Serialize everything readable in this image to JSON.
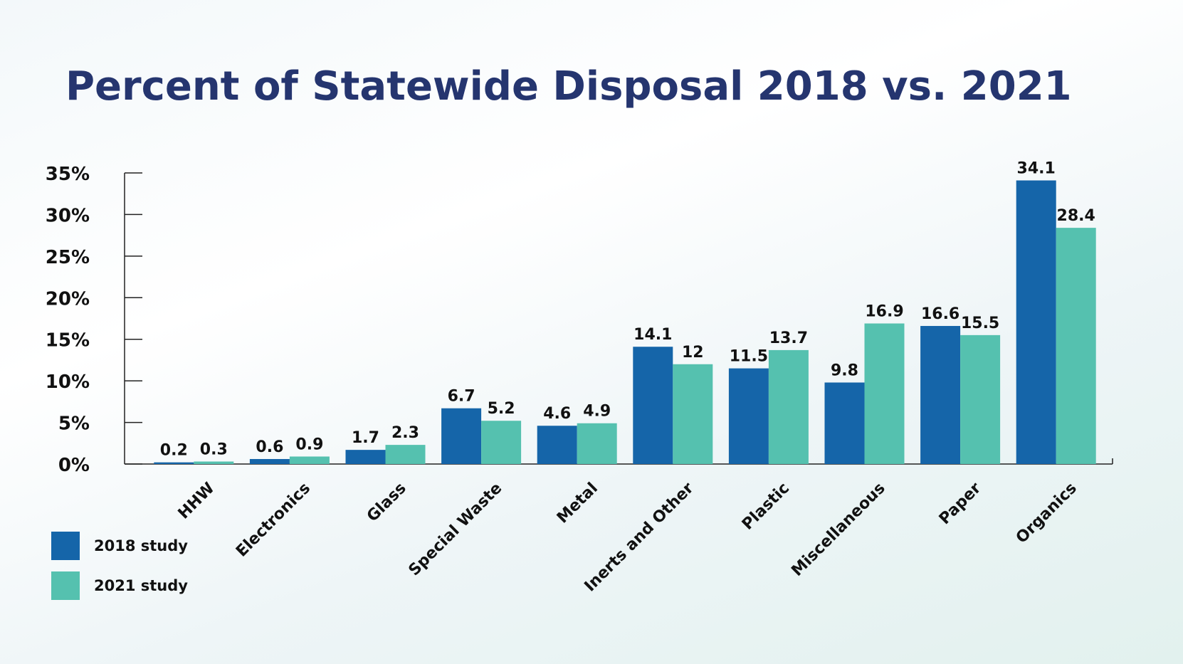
{
  "chart_data": {
    "type": "bar",
    "title": "Percent of Statewide Disposal 2018 vs. 2021",
    "xlabel": "",
    "ylabel": "",
    "ylim": [
      0,
      35
    ],
    "yticks": [
      "0%",
      "5%",
      "10%",
      "15%",
      "20%",
      "25%",
      "30%",
      "35%"
    ],
    "categories": [
      "HHW",
      "Electronics",
      "Glass",
      "Special Waste",
      "Metal",
      "Inerts and Other",
      "Plastic",
      "Miscellaneous",
      "Paper",
      "Organics"
    ],
    "series": [
      {
        "name": "2018 study",
        "color": "#1565a9",
        "values": [
          0.2,
          0.6,
          1.7,
          6.7,
          4.6,
          14.1,
          11.5,
          9.8,
          16.6,
          34.1
        ]
      },
      {
        "name": "2021 study",
        "color": "#55c1af",
        "values": [
          0.3,
          0.9,
          2.3,
          5.2,
          4.9,
          12,
          13.7,
          16.9,
          15.5,
          28.4
        ]
      }
    ],
    "grid": false,
    "legend": "bottom-left",
    "title_color": "#25356f"
  }
}
